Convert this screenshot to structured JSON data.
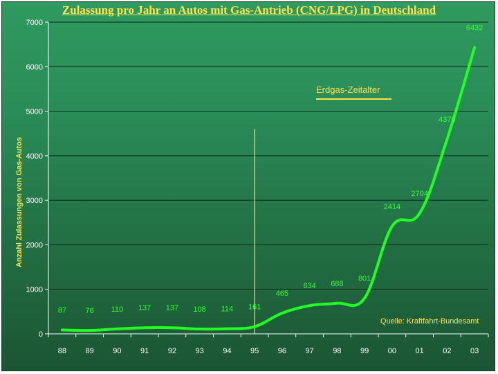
{
  "chart_data": {
    "type": "line",
    "title": "Zulassung pro Jahr an Autos mit Gas-Antrieb (CNG/LPG) in Deutschland",
    "ylabel": "Anzahl Zulassungen von Gas-Autos",
    "xlabel": "",
    "categories": [
      "88",
      "89",
      "90",
      "91",
      "92",
      "93",
      "94",
      "95",
      "96",
      "97",
      "98",
      "99",
      "00",
      "01",
      "02",
      "03"
    ],
    "series": [
      {
        "values": [
          87,
          76,
          110,
          137,
          137,
          108,
          114,
          161,
          465,
          634,
          688,
          801,
          2414,
          2704,
          4370,
          6432
        ],
        "labels": [
          "87",
          "76",
          "110",
          "137",
          "137",
          "108",
          "114",
          "161",
          "465",
          "634",
          "688",
          "801",
          "2414",
          "2704",
          "4370",
          "6432"
        ],
        "color": "#22ff22"
      }
    ],
    "ylim": [
      0,
      7000
    ],
    "yticks": [
      0,
      1000,
      2000,
      3000,
      4000,
      5000,
      6000,
      7000
    ],
    "ytick_labels": [
      "0",
      "1000",
      "2000",
      "3000",
      "4000",
      "5000",
      "6000",
      "7000"
    ],
    "grid": true,
    "annotations": {
      "era": "Erdgas-Zeitalter",
      "era_marker_category": "95",
      "source": "Quelle:  Kraftfahrt-Bundesamt"
    },
    "colors": {
      "title": "#ffe34d",
      "line": "#22ff22",
      "labels": "#33ff33",
      "marker": "#ffffaa",
      "grid": "#0a2a18",
      "background": "#2a8c58"
    }
  }
}
